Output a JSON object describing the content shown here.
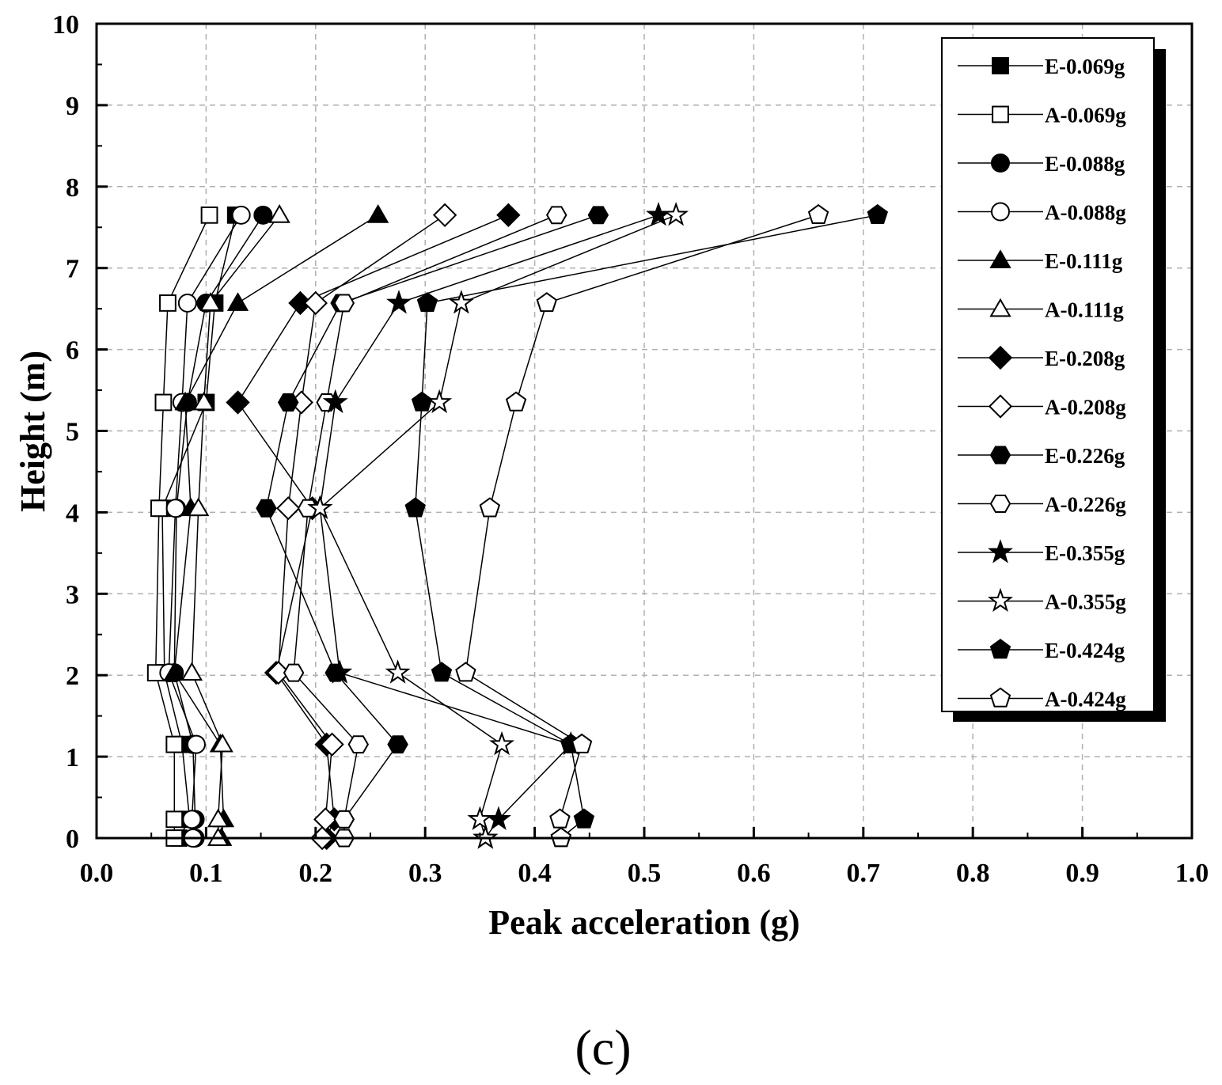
{
  "chart_data": {
    "type": "line",
    "title": "",
    "xlabel": "Peak acceleration (g)",
    "ylabel": "Height (m)",
    "xlim": [
      0.0,
      1.0
    ],
    "ylim": [
      0,
      10
    ],
    "xticks": [
      "0.0",
      "0.1",
      "0.2",
      "0.3",
      "0.4",
      "0.5",
      "0.6",
      "0.7",
      "0.8",
      "0.9",
      "1.0"
    ],
    "yticks": [
      "0",
      "1",
      "2",
      "3",
      "4",
      "5",
      "6",
      "7",
      "8",
      "9",
      "10"
    ],
    "grid": true,
    "legend_position": "top-right",
    "panel_label": "(c)",
    "heights": [
      0,
      0.23,
      1.15,
      2.03,
      4.05,
      5.35,
      6.57,
      7.65
    ],
    "series": [
      {
        "name": "E-0.069g",
        "marker": "square",
        "filled": true,
        "values": [
          0.075,
          0.085,
          0.078,
          0.062,
          0.06,
          0.1,
          0.108,
          0.127
        ]
      },
      {
        "name": "A-0.069g",
        "marker": "square",
        "filled": false,
        "values": [
          0.071,
          0.071,
          0.071,
          0.054,
          0.057,
          0.061,
          0.065,
          0.103
        ]
      },
      {
        "name": "E-0.088g",
        "marker": "circle",
        "filled": true,
        "values": [
          0.09,
          0.09,
          0.088,
          0.071,
          0.073,
          0.083,
          0.1,
          0.152
        ]
      },
      {
        "name": "A-0.088g",
        "marker": "circle",
        "filled": false,
        "values": [
          0.088,
          0.087,
          0.091,
          0.066,
          0.072,
          0.078,
          0.083,
          0.132
        ]
      },
      {
        "name": "E-0.111g",
        "marker": "triangle",
        "filled": true,
        "values": [
          0.114,
          0.116,
          0.113,
          0.071,
          0.086,
          0.081,
          0.129,
          0.257
        ]
      },
      {
        "name": "A-0.111g",
        "marker": "triangle",
        "filled": false,
        "values": [
          0.111,
          0.111,
          0.115,
          0.087,
          0.093,
          0.098,
          0.104,
          0.167
        ]
      },
      {
        "name": "E-0.208g",
        "marker": "diamond",
        "filled": true,
        "values": [
          0.21,
          0.217,
          0.21,
          0.164,
          0.197,
          0.129,
          0.186,
          0.376
        ]
      },
      {
        "name": "A-0.208g",
        "marker": "diamond",
        "filled": false,
        "values": [
          0.206,
          0.209,
          0.215,
          0.166,
          0.175,
          0.187,
          0.2,
          0.318
        ]
      },
      {
        "name": "E-0.226g",
        "marker": "hexagon",
        "filled": true,
        "values": [
          0.226,
          0.226,
          0.275,
          0.218,
          0.155,
          0.175,
          0.223,
          0.458
        ]
      },
      {
        "name": "A-0.226g",
        "marker": "hexagon",
        "filled": false,
        "values": [
          0.226,
          0.226,
          0.239,
          0.18,
          0.193,
          0.21,
          0.226,
          0.42
        ]
      },
      {
        "name": "E-0.355g",
        "marker": "star",
        "filled": true,
        "values": [
          0.355,
          0.367,
          0.433,
          0.222,
          0.204,
          0.218,
          0.276,
          0.513
        ]
      },
      {
        "name": "A-0.355g",
        "marker": "star",
        "filled": false,
        "values": [
          0.355,
          0.35,
          0.37,
          0.275,
          0.204,
          0.313,
          0.333,
          0.529
        ]
      },
      {
        "name": "E-0.424g",
        "marker": "pentagon",
        "filled": true,
        "values": [
          0.424,
          0.445,
          0.433,
          0.315,
          0.291,
          0.297,
          0.302,
          0.713
        ]
      },
      {
        "name": "A-0.424g",
        "marker": "pentagon",
        "filled": false,
        "values": [
          0.424,
          0.423,
          0.443,
          0.337,
          0.359,
          0.383,
          0.411,
          0.659
        ]
      }
    ]
  },
  "colors": {
    "stroke": "#000000",
    "fill_open": "#ffffff",
    "grid": "#b0b0b0"
  }
}
